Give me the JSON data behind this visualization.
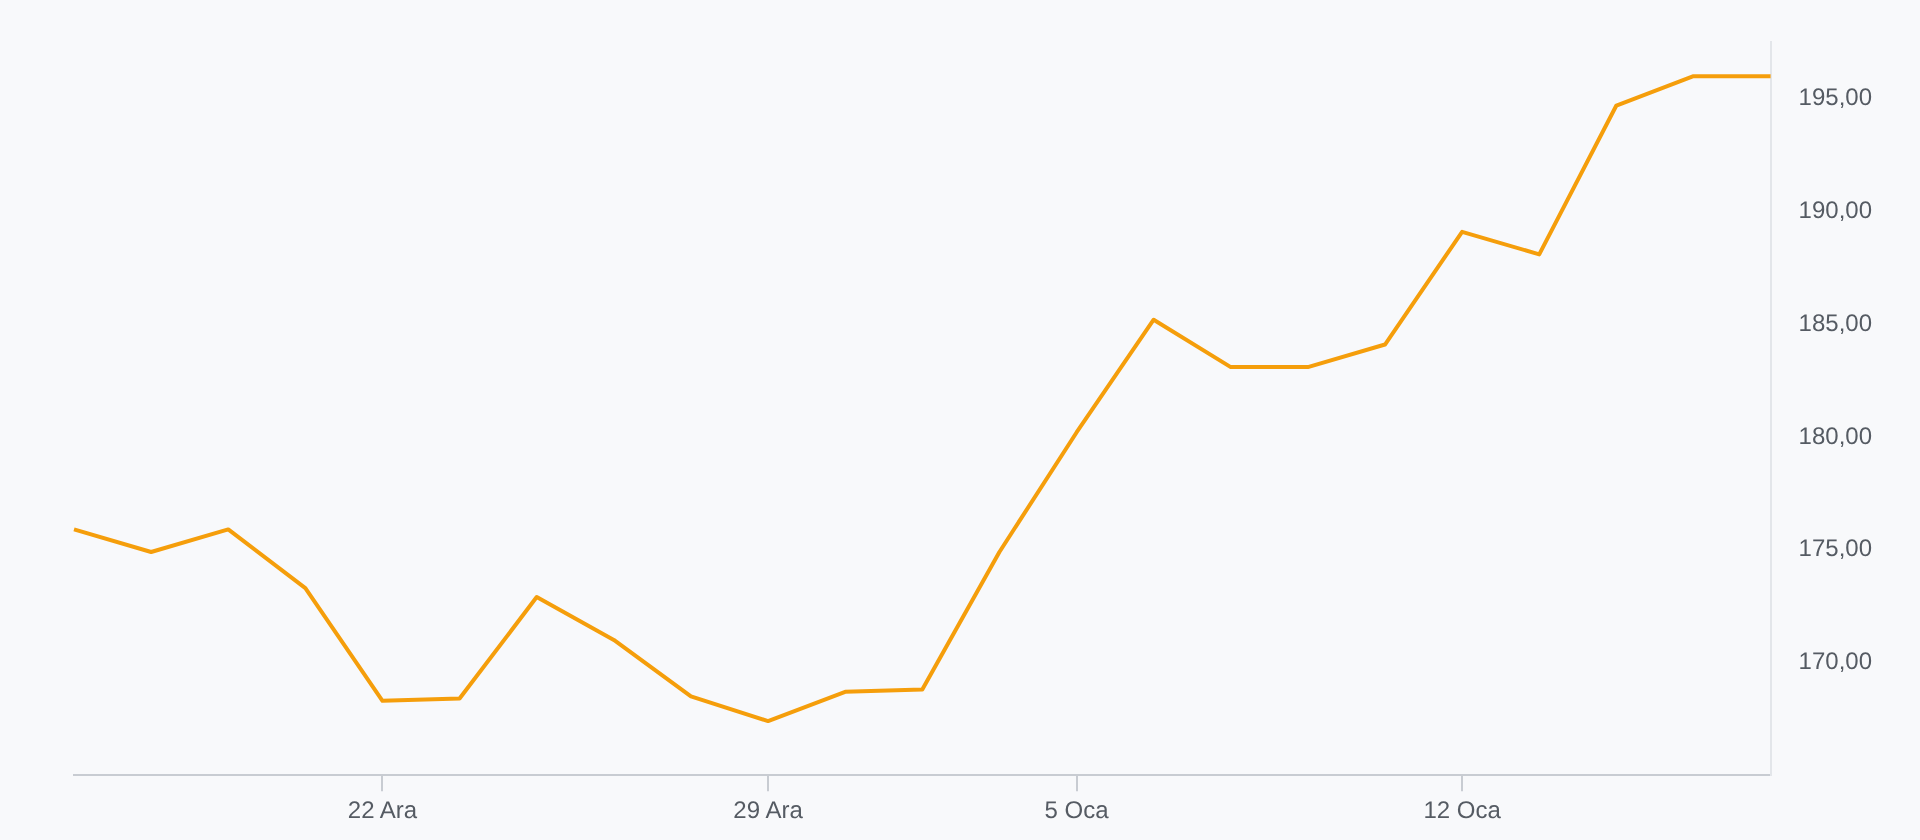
{
  "chart_data": {
    "type": "line",
    "categories": [
      null,
      null,
      null,
      null,
      "22 Ara",
      null,
      null,
      null,
      null,
      "29 Ara",
      null,
      null,
      null,
      "5 Oca",
      null,
      null,
      null,
      null,
      "12 Oca",
      null,
      null,
      null,
      null
    ],
    "series": [
      {
        "color": "#f59e0b",
        "values": [
          175.9,
          174.9,
          175.9,
          173.3,
          168.3,
          168.4,
          172.9,
          171.0,
          168.5,
          167.4,
          168.7,
          168.8,
          174.9,
          180.2,
          185.2,
          183.1,
          183.1,
          184.1,
          189.1,
          188.1,
          194.7,
          196.0,
          196.0
        ]
      }
    ],
    "yticks": [
      {
        "value": 170,
        "label": "170,00"
      },
      {
        "value": 175,
        "label": "175,00"
      },
      {
        "value": 180,
        "label": "180,00"
      },
      {
        "value": 185,
        "label": "185,00"
      },
      {
        "value": 190,
        "label": "190,00"
      },
      {
        "value": 195,
        "label": "195,00"
      }
    ],
    "ylim": [
      165,
      197.5
    ],
    "grid": false,
    "legend": false,
    "marker": "none",
    "line_style": "solid"
  }
}
